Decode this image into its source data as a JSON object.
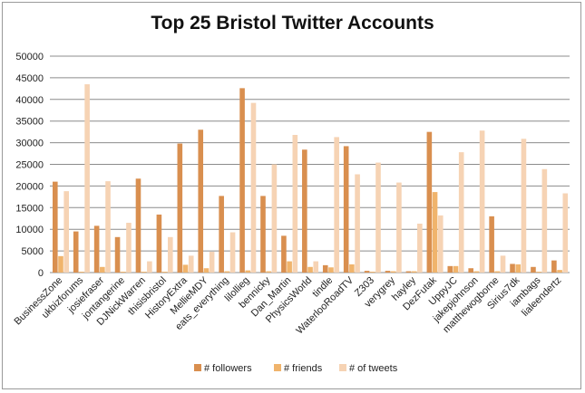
{
  "chart_data": {
    "type": "bar",
    "title": "Top 25 Bristol Twitter Accounts",
    "xlabel": "",
    "ylabel": "",
    "ylim": [
      0,
      50000
    ],
    "yticks": [
      "0",
      "5000",
      "10000",
      "15000",
      "20000",
      "25000",
      "30000",
      "35000",
      "40000",
      "45000",
      "50000"
    ],
    "grid": true,
    "legend_position": "bottom",
    "categories": [
      "BusinessZone",
      "ukbizforums",
      "josiefraser",
      "jontangerine",
      "DJNickWarren",
      "thisisbristol",
      "HistoryExtra",
      "MellieMDY",
      "eats_everything",
      "lilollieg",
      "bennicky",
      "Dan_Martin",
      "PhysicsWorld",
      "tindle",
      "WaterlooRoadTV",
      "Z303",
      "verygrey",
      "hayley",
      "DezFutak",
      "UppyJC",
      "jakepjohnson",
      "matthewogborne",
      "Sirius7dk",
      "iambags",
      "lialeendertz"
    ],
    "series": [
      {
        "name": "# followers",
        "color": "#d98f4f",
        "values": [
          21000,
          9500,
          10800,
          8200,
          21700,
          13400,
          29800,
          33000,
          17700,
          42600,
          17700,
          8500,
          28400,
          1700,
          29200,
          400,
          400,
          300,
          32500,
          1500,
          1000,
          13000,
          2000,
          1300,
          2800
        ]
      },
      {
        "name": "# friends",
        "color": "#f0b46c",
        "values": [
          3800,
          200,
          1300,
          200,
          200,
          200,
          1800,
          1000,
          300,
          500,
          300,
          2600,
          1300,
          1200,
          1900,
          200,
          300,
          300,
          18600,
          1500,
          300,
          300,
          1900,
          200,
          600
        ]
      },
      {
        "name": "# of tweets",
        "color": "#f6d3b4",
        "values": [
          18800,
          43500,
          21100,
          11500,
          2600,
          8200,
          3900,
          4800,
          9300,
          39200,
          25000,
          31800,
          2600,
          31300,
          22700,
          25400,
          20800,
          11300,
          13200,
          27800,
          32800,
          3900,
          30900,
          23900,
          18300
        ]
      }
    ]
  }
}
